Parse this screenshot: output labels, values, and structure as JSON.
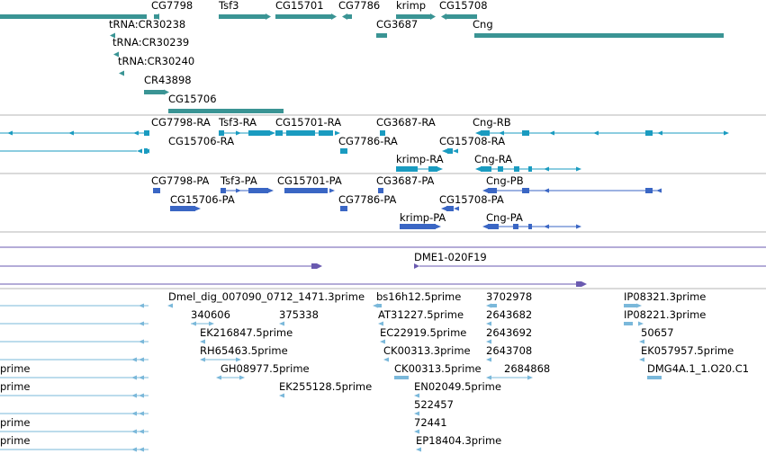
{
  "colors": {
    "gene": "#3a9494",
    "transcript_ra": "#1a9bc0",
    "protein_pa": "#3a66c4",
    "clone": "#6a5ab0",
    "est": "#7ab8da",
    "divider": "#b4b4b4"
  },
  "tracks": [
    {
      "name": "genes",
      "labels": [
        "CG7798",
        "Tsf3",
        "CG15701",
        "CG7786",
        "krimp",
        "CG15708",
        "tRNA:CR30238",
        "CG3687",
        "Cng",
        "tRNA:CR30239",
        "tRNA:CR30240",
        "CR43898",
        "CG15706"
      ]
    },
    {
      "name": "transcripts",
      "labels": [
        "CG7798-RA",
        "Tsf3-RA",
        "CG15701-RA",
        "CG3687-RA",
        "Cng-RB",
        "CG15706-RA",
        "CG7786-RA",
        "CG15708-RA",
        "krimp-RA",
        "Cng-RA"
      ]
    },
    {
      "name": "proteins",
      "labels": [
        "CG7798-PA",
        "Tsf3-PA",
        "CG15701-PA",
        "CG3687-PA",
        "Cng-PB",
        "CG15706-PA",
        "CG7786-PA",
        "CG15708-PA",
        "krimp-PA",
        "Cng-PA"
      ]
    },
    {
      "name": "clones",
      "labels": [
        "DME1-020F19"
      ]
    },
    {
      "name": "ests",
      "labels": [
        "Dmel_dig_007090_0712_1471.3prime",
        "bs16h12.5prime",
        "3702978",
        "IP08321.3prime",
        "340606",
        "375338",
        "AT31227.5prime",
        "2643682",
        "IP08221.3prime",
        "EK216847.5prime",
        "EC22919.5prime",
        "2643692",
        "50657",
        "RH65463.5prime",
        "CK00313.3prime",
        "2643708",
        "EK057957.5prime",
        "prime",
        "GH08977.5prime",
        "CK00313.5prime",
        "2684868",
        "DMG4A.1_1.O20.C1",
        "prime",
        "EK255128.5prime",
        "EN02049.5prime",
        "522457",
        "prime",
        "72441",
        "prime",
        "EP18404.3prime"
      ]
    }
  ]
}
